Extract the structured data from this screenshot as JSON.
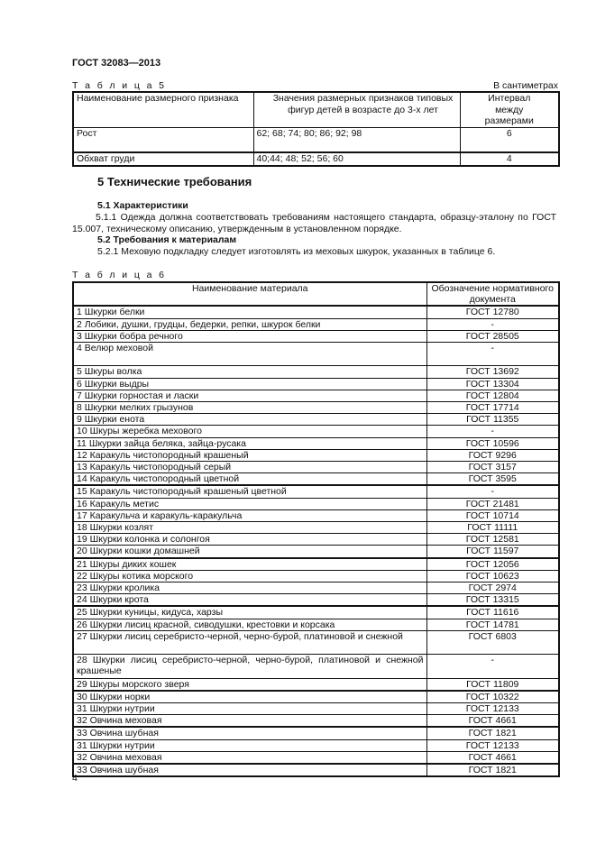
{
  "header": {
    "doc_id": "ГОСТ 32083—2013"
  },
  "table5": {
    "caption": "Т а б л и ц а  5",
    "units": "В сантиметрах",
    "columns": [
      "Наименование размерного признака",
      "Значения размерных признаков типовых фигур детей в возрасте до 3-х лет",
      "Интервал между размерами"
    ],
    "rows": [
      {
        "name": "Рост",
        "values": "62; 68; 74; 80; 86; 92; 98",
        "interval": "6"
      },
      {
        "name": "Обхват груди",
        "values": "40;44; 48; 52; 56; 60",
        "interval": "4"
      }
    ]
  },
  "section5": {
    "title": "5  Технические требования",
    "s51_title": "5.1 Характеристики",
    "s511": "5.1.1 Одежда должна соответствовать требованиям настоящего стандарта, образцу-эталону по ГОСТ 15.007, техническому описанию, утвержденным в установленном порядке.",
    "s52_title": "5.2  Требования к материалам",
    "s521": "5.2.1 Меховую подкладку следует изготовлять из меховых шкурок, указанных в таблице 6."
  },
  "table6": {
    "caption": "Т а б л и ц а  6",
    "columns": [
      "Наименование материала",
      "Обозначение нормативного документа"
    ],
    "rows": [
      [
        "1 Шкурки белки",
        "ГОСТ 12780"
      ],
      [
        "2 Лобики, душки, грудцы, бедерки, репки, шкурок белки",
        "-"
      ],
      [
        "3 Шкурки бобра речного",
        "ГОСТ 28505"
      ],
      [
        "4 Велюр меховой",
        "-"
      ],
      [
        "5 Шкуры волка",
        "ГОСТ 13692"
      ],
      [
        "6 Шкурки выдры",
        "ГОСТ 13304"
      ],
      [
        "7 Шкурки горностая и ласки",
        "ГОСТ 12804"
      ],
      [
        "8 Шкурки мелких грызунов",
        "ГОСТ 17714"
      ],
      [
        "9 Шкурки енота",
        "ГОСТ 11355"
      ],
      [
        "10 Шкуры жеребка мехового",
        "-"
      ],
      [
        "11 Шкурки зайца беляка, зайца-русака",
        "ГОСТ 10596"
      ],
      [
        "12 Каракуль чистопородный крашеный",
        "ГОСТ 9296"
      ],
      [
        "13 Каракуль чистопородный серый",
        "ГОСТ 3157"
      ],
      [
        "14 Каракуль чистопородный цветной",
        "ГОСТ 3595"
      ],
      [
        "15 Каракуль чистопородный крашеный цветной",
        "-"
      ],
      [
        "16 Каракуль метис",
        "ГОСТ 21481"
      ],
      [
        "17 Каракульча и каракуль-каракульча",
        "ГОСТ 10714"
      ],
      [
        "18 Шкурки козлят",
        "ГОСТ 11111"
      ],
      [
        "19 Шкурки колонка и солонгоя",
        "ГОСТ 12581"
      ],
      [
        "20 Шкурки кошки домашней",
        "ГОСТ 11597"
      ],
      [
        "21 Шкуры диких кошек",
        "ГОСТ 12056"
      ],
      [
        "22 Шкуры котика морского",
        "ГОСТ 10623"
      ],
      [
        "23 Шкурки кролика",
        "ГОСТ 2974"
      ],
      [
        "24 Шкурки крота",
        "ГОСТ 13315"
      ],
      [
        "25 Шкурки куницы, кидуса, харзы",
        "ГОСТ 11616"
      ],
      [
        "26 Шкурки лисиц красной, сиводушки, крестовки и корсака",
        "ГОСТ 14781"
      ],
      [
        "27 Шкурки лисиц серебристо-черной, черно-бурой, платиновой и снежной",
        "ГОСТ 6803"
      ],
      [
        "28 Шкурки лисиц серебристо-черной, черно-бурой, платиновой и снежной крашеные",
        "-"
      ],
      [
        "29 Шкуры морского зверя",
        "ГОСТ 11809"
      ],
      [
        "30 Шкурки норки",
        "ГОСТ 10322"
      ],
      [
        "31 Шкурки нутрии",
        "ГОСТ 12133"
      ],
      [
        "32 Овчина меховая",
        "ГОСТ 4661"
      ],
      [
        "33 Овчина шубная",
        "ГОСТ 1821"
      ],
      [
        "31 Шкурки нутрии",
        "ГОСТ 12133"
      ],
      [
        "32 Овчина меховая",
        "ГОСТ 4661"
      ],
      [
        "33 Овчина шубная",
        "ГОСТ 1821"
      ]
    ]
  },
  "footer": {
    "page_number": "4"
  }
}
